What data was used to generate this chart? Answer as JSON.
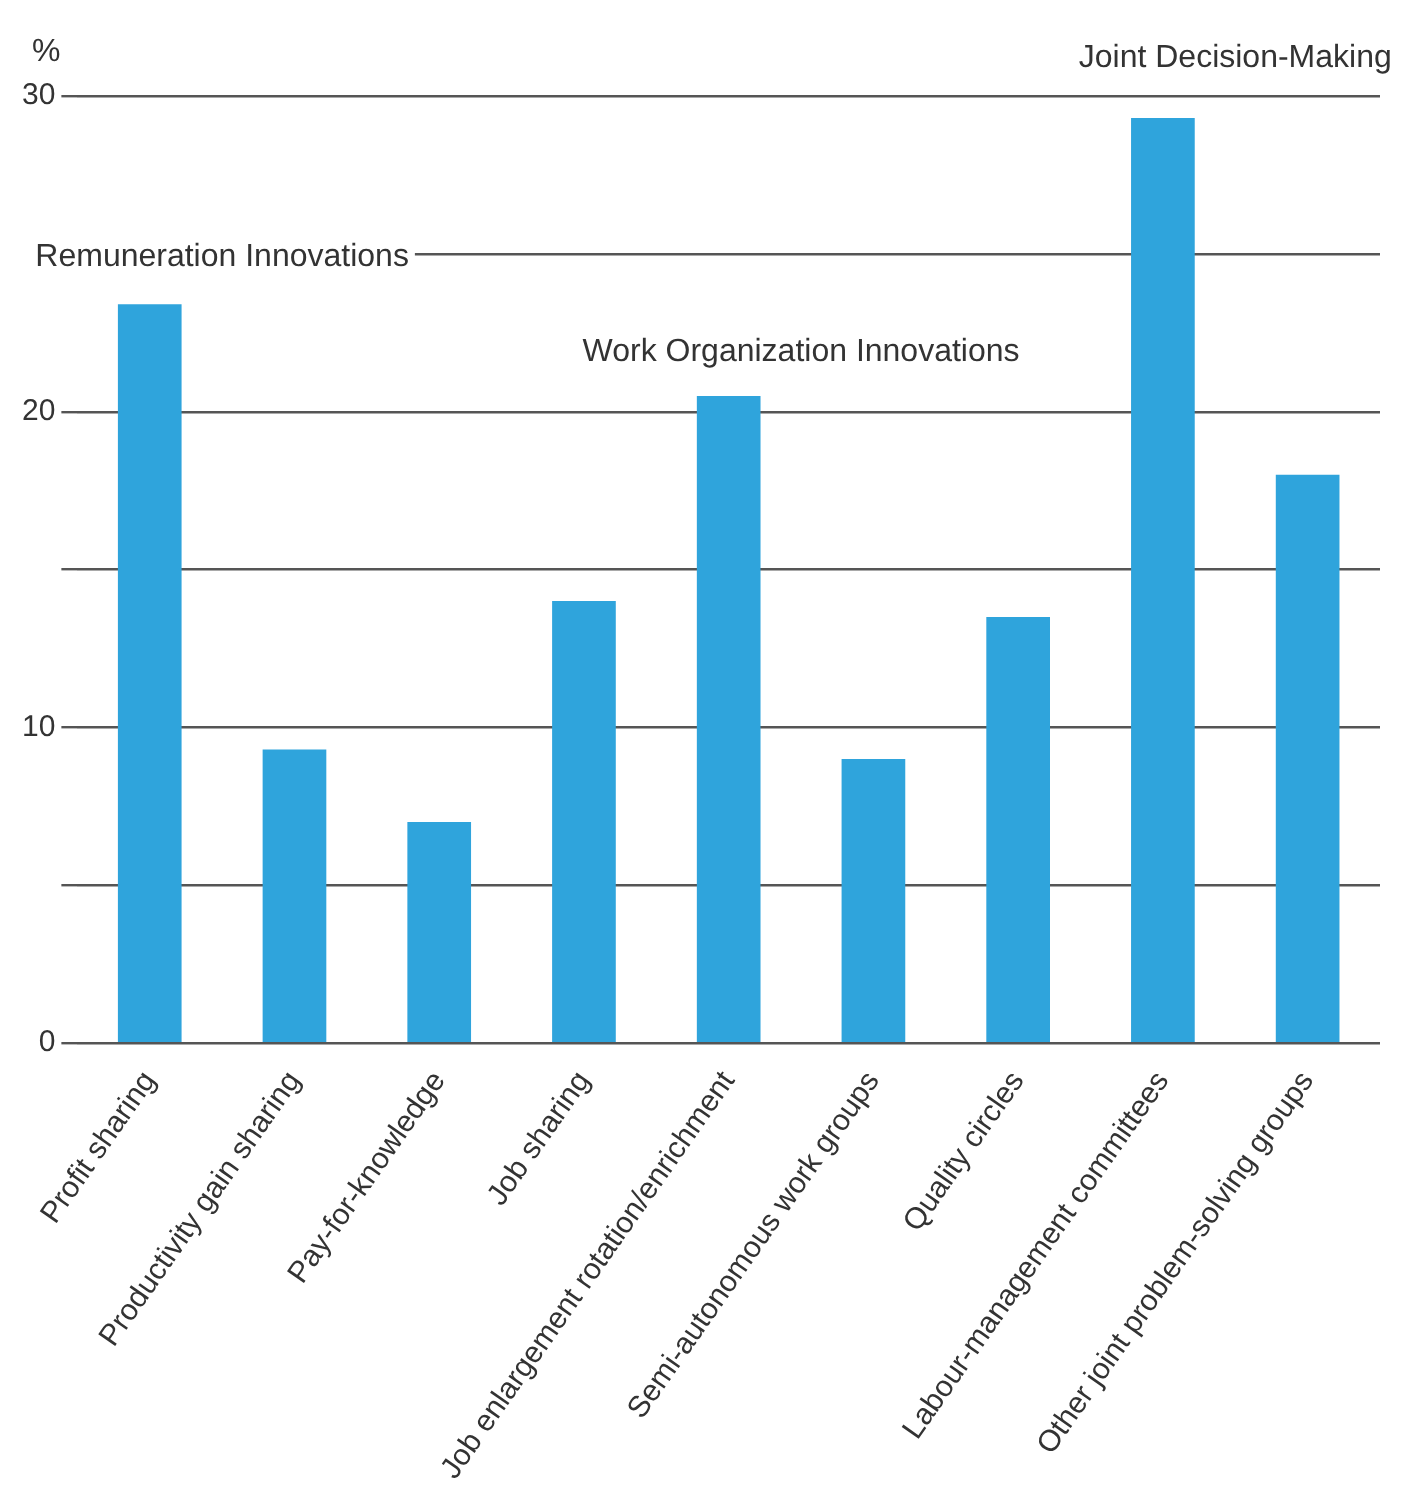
{
  "chart_data": {
    "type": "bar",
    "ylabel": "%",
    "categories": [
      "Profit sharing",
      "Productivity gain sharing",
      "Pay-for-knowledge",
      "Job sharing",
      "Job enlargement rotation/enrichment",
      "Semi-autonomous work groups",
      "Quality circles",
      "Labour-management committees",
      "Other joint problem-solving groups"
    ],
    "values": [
      23.4,
      9.3,
      7.0,
      14.0,
      20.5,
      9.0,
      13.5,
      29.3,
      18.0
    ],
    "color": "#2fa4dc",
    "ylim": [
      0,
      30
    ],
    "yticks": [
      0,
      {
        "value": 5,
        "label": null
      },
      10,
      {
        "value": 15,
        "label": null
      },
      20,
      {
        "value": 25,
        "label": null
      },
      30
    ],
    "grid": "y",
    "annotations": [
      "Remuneration Innovations",
      "Work Organization Innovations",
      "Joint Decision-Making"
    ]
  }
}
